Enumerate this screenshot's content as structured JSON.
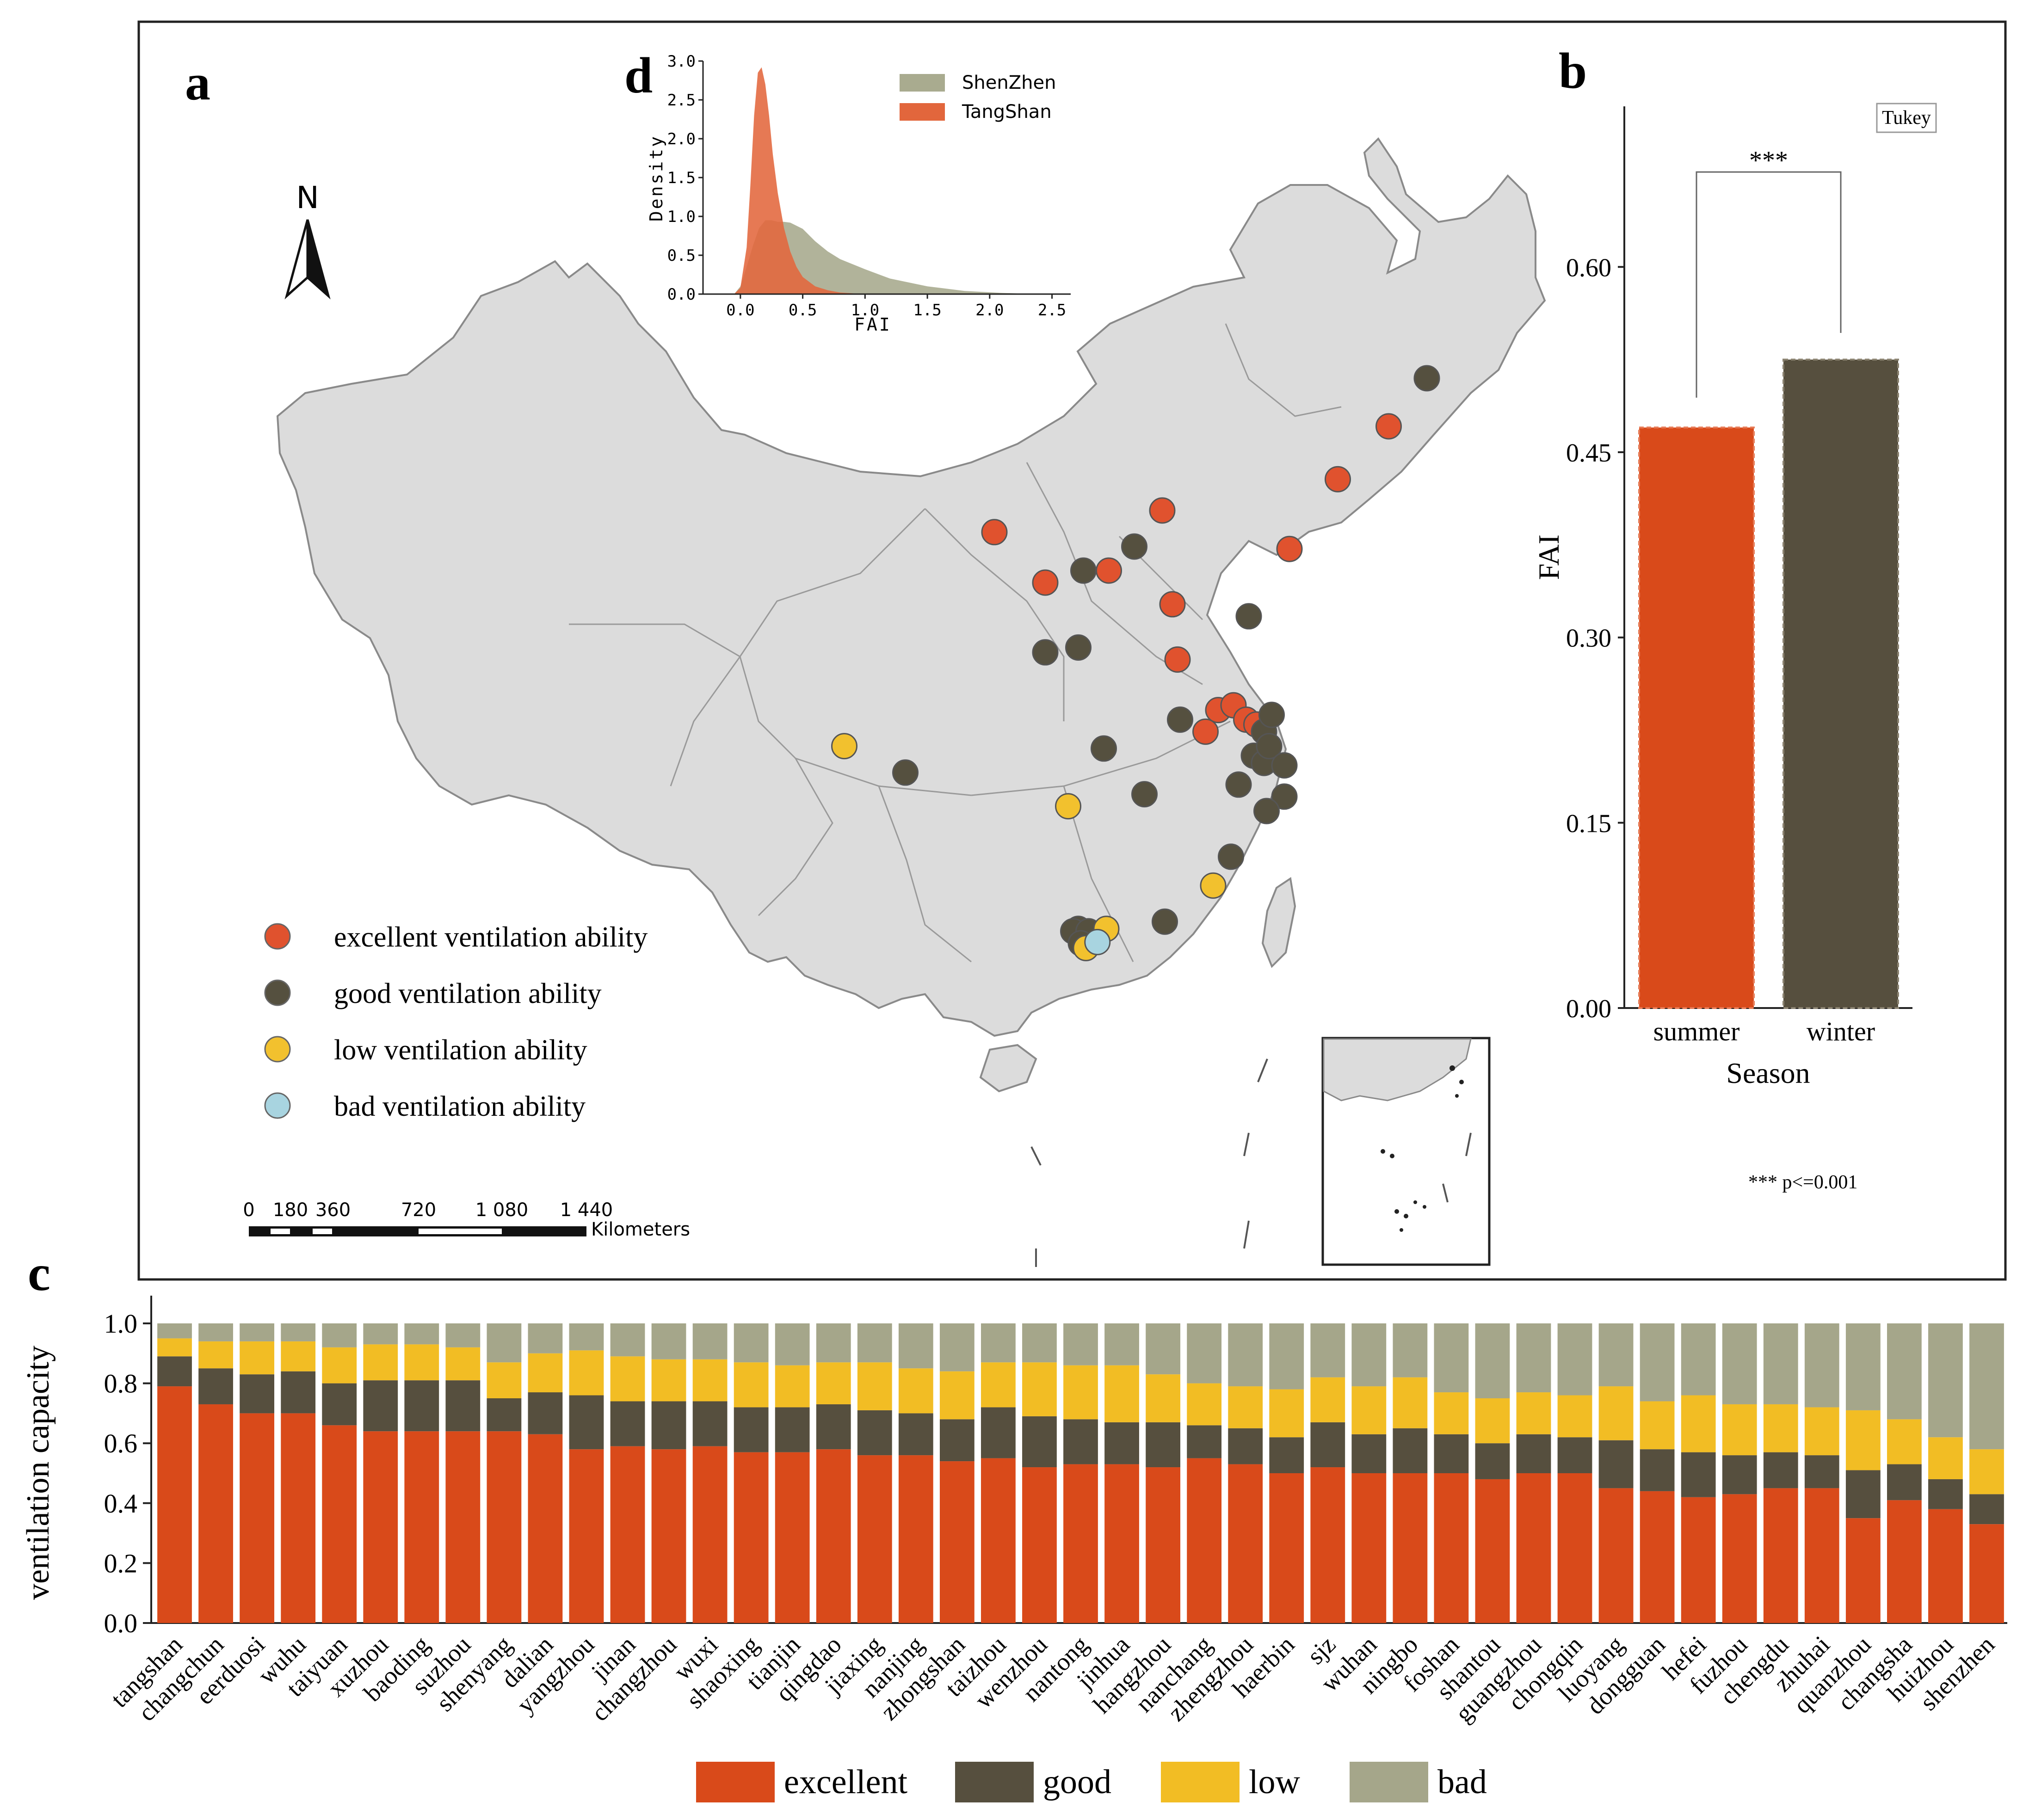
{
  "panels": {
    "a": "a",
    "b": "b",
    "c": "c",
    "d": "d"
  },
  "map": {
    "north": "N",
    "legend": [
      {
        "label": "excellent ventilation ability",
        "color": "#e0522e"
      },
      {
        "label": "good ventilation ability",
        "color": "#55503f"
      },
      {
        "label": "low ventilation ability",
        "color": "#f2c12e"
      },
      {
        "label": "bad ventilation ability",
        "color": "#a8d4e0"
      }
    ],
    "scale": {
      "ticks": [
        "0",
        "180",
        "360",
        "720",
        "1 080",
        "1 440"
      ],
      "unit": "Kilometers"
    }
  },
  "colors": {
    "excellent": "#d94a1a",
    "good": "#564f3e",
    "low": "#f2bd24",
    "bad": "#a5a68a",
    "shenzhen": "#a9ab8f",
    "tangshan": "#e2663c"
  },
  "chart_data": [
    {
      "id": "b",
      "type": "bar",
      "categories": [
        "summer",
        "winter"
      ],
      "values": [
        0.47,
        0.525
      ],
      "xlabel": "Season",
      "ylabel": "FAI",
      "ylim": [
        0,
        0.73
      ],
      "yticks": [
        "0.00",
        "0.15",
        "0.30",
        "0.45",
        "0.60"
      ],
      "test_label": "Tukey",
      "significance": "***",
      "footnote": "*** p<=0.001"
    },
    {
      "id": "c",
      "type": "bar",
      "stacked": true,
      "ylabel": "ventilation capacity",
      "ylim": [
        0,
        1.0
      ],
      "yticks": [
        "0.0",
        "0.2",
        "0.4",
        "0.6",
        "0.8",
        "1.0"
      ],
      "categories": [
        "tangshan",
        "changchun",
        "eerduosi",
        "wuhu",
        "taiyuan",
        "xuzhou",
        "baoding",
        "suzhou",
        "shenyang",
        "dalian",
        "yangzhou",
        "jinan",
        "changzhou",
        "wuxi",
        "shaoxing",
        "tianjin",
        "qingdao",
        "jiaxing",
        "nanjing",
        "zhongshan",
        "taizhou",
        "wenzhou",
        "nantong",
        "jinhua",
        "hangzhou",
        "nanchang",
        "zhengzhou",
        "haerbin",
        "sjz",
        "wuhan",
        "ningbo",
        "foshan",
        "shantou",
        "guangzhou",
        "chongqin",
        "luoyang",
        "dongguan",
        "hefei",
        "fuzhou",
        "chengdu",
        "zhuhai",
        "quanzhou",
        "changsha",
        "huizhou",
        "shenzhen"
      ],
      "series": [
        {
          "name": "excellent",
          "values": [
            0.79,
            0.73,
            0.7,
            0.7,
            0.66,
            0.64,
            0.64,
            0.64,
            0.64,
            0.63,
            0.58,
            0.59,
            0.58,
            0.59,
            0.57,
            0.57,
            0.58,
            0.56,
            0.56,
            0.54,
            0.55,
            0.52,
            0.53,
            0.53,
            0.52,
            0.55,
            0.53,
            0.5,
            0.52,
            0.5,
            0.5,
            0.5,
            0.48,
            0.5,
            0.5,
            0.45,
            0.44,
            0.42,
            0.43,
            0.45,
            0.45,
            0.35,
            0.41,
            0.38,
            0.33
          ]
        },
        {
          "name": "good",
          "values": [
            0.1,
            0.12,
            0.13,
            0.14,
            0.14,
            0.17,
            0.17,
            0.17,
            0.11,
            0.14,
            0.18,
            0.15,
            0.16,
            0.15,
            0.15,
            0.15,
            0.15,
            0.15,
            0.14,
            0.14,
            0.17,
            0.17,
            0.15,
            0.14,
            0.15,
            0.11,
            0.12,
            0.12,
            0.15,
            0.13,
            0.15,
            0.13,
            0.12,
            0.13,
            0.12,
            0.16,
            0.14,
            0.15,
            0.13,
            0.12,
            0.11,
            0.16,
            0.12,
            0.1,
            0.1
          ]
        },
        {
          "name": "low",
          "values": [
            0.06,
            0.09,
            0.11,
            0.1,
            0.12,
            0.12,
            0.12,
            0.11,
            0.12,
            0.13,
            0.15,
            0.15,
            0.14,
            0.14,
            0.15,
            0.14,
            0.14,
            0.16,
            0.15,
            0.16,
            0.15,
            0.18,
            0.18,
            0.19,
            0.16,
            0.14,
            0.14,
            0.16,
            0.15,
            0.16,
            0.17,
            0.14,
            0.15,
            0.14,
            0.14,
            0.18,
            0.16,
            0.19,
            0.17,
            0.16,
            0.16,
            0.2,
            0.15,
            0.14,
            0.15
          ]
        },
        {
          "name": "bad",
          "values": [
            0.05,
            0.06,
            0.06,
            0.06,
            0.08,
            0.07,
            0.07,
            0.08,
            0.13,
            0.1,
            0.09,
            0.11,
            0.12,
            0.12,
            0.13,
            0.14,
            0.13,
            0.13,
            0.15,
            0.16,
            0.13,
            0.13,
            0.14,
            0.14,
            0.17,
            0.2,
            0.21,
            0.22,
            0.18,
            0.21,
            0.18,
            0.23,
            0.25,
            0.23,
            0.24,
            0.21,
            0.26,
            0.24,
            0.27,
            0.27,
            0.28,
            0.29,
            0.32,
            0.38,
            0.42
          ]
        }
      ],
      "legend": [
        "excellent",
        "good",
        "low",
        "bad"
      ]
    },
    {
      "id": "d",
      "type": "area",
      "xlabel": "FAI",
      "ylabel": "Density",
      "xlim": [
        -0.3,
        2.65
      ],
      "ylim": [
        0,
        3.0
      ],
      "xticks": [
        "0.0",
        "0.5",
        "1.0",
        "1.5",
        "2.0",
        "2.5"
      ],
      "yticks": [
        "0.0",
        "0.5",
        "1.0",
        "1.5",
        "2.0",
        "2.5",
        "3.0"
      ],
      "series": [
        {
          "name": "ShenZhen",
          "x": [
            -0.05,
            0.0,
            0.05,
            0.1,
            0.15,
            0.2,
            0.25,
            0.3,
            0.35,
            0.4,
            0.5,
            0.6,
            0.7,
            0.8,
            1.0,
            1.2,
            1.5,
            1.8,
            2.1,
            2.4
          ],
          "y": [
            0.0,
            0.1,
            0.35,
            0.62,
            0.85,
            0.95,
            0.95,
            0.93,
            0.93,
            0.92,
            0.84,
            0.68,
            0.55,
            0.45,
            0.32,
            0.2,
            0.1,
            0.04,
            0.015,
            0.0
          ]
        },
        {
          "name": "TangShan",
          "x": [
            -0.05,
            0.0,
            0.05,
            0.08,
            0.11,
            0.14,
            0.17,
            0.2,
            0.23,
            0.26,
            0.3,
            0.35,
            0.4,
            0.45,
            0.5,
            0.6,
            0.7,
            0.8,
            1.0
          ],
          "y": [
            0.0,
            0.08,
            0.6,
            1.4,
            2.3,
            2.85,
            2.92,
            2.7,
            2.3,
            1.8,
            1.3,
            0.85,
            0.55,
            0.35,
            0.22,
            0.1,
            0.05,
            0.02,
            0.0
          ]
        }
      ]
    }
  ],
  "map_points": [
    {
      "lon": 127.0,
      "lat": 46.0,
      "class": "good"
    },
    {
      "lon": 125.5,
      "lat": 44.0,
      "class": "excellent"
    },
    {
      "lon": 123.5,
      "lat": 41.8,
      "class": "excellent"
    },
    {
      "lon": 121.6,
      "lat": 38.9,
      "class": "excellent"
    },
    {
      "lon": 116.6,
      "lat": 40.5,
      "class": "excellent"
    },
    {
      "lon": 115.5,
      "lat": 39.0,
      "class": "good"
    },
    {
      "lon": 114.5,
      "lat": 38.0,
      "class": "excellent"
    },
    {
      "lon": 113.5,
      "lat": 38.0,
      "class": "good"
    },
    {
      "lon": 112.0,
      "lat": 37.5,
      "class": "excellent"
    },
    {
      "lon": 110.0,
      "lat": 39.6,
      "class": "excellent"
    },
    {
      "lon": 117.0,
      "lat": 36.6,
      "class": "excellent"
    },
    {
      "lon": 120.0,
      "lat": 36.1,
      "class": "good"
    },
    {
      "lon": 117.2,
      "lat": 34.3,
      "class": "excellent"
    },
    {
      "lon": 112.0,
      "lat": 34.6,
      "class": "good"
    },
    {
      "lon": 113.3,
      "lat": 34.8,
      "class": "good"
    },
    {
      "lon": 118.8,
      "lat": 32.2,
      "class": "excellent"
    },
    {
      "lon": 119.4,
      "lat": 32.4,
      "class": "excellent"
    },
    {
      "lon": 118.3,
      "lat": 31.3,
      "class": "excellent"
    },
    {
      "lon": 117.3,
      "lat": 31.8,
      "class": "good"
    },
    {
      "lon": 119.9,
      "lat": 31.8,
      "class": "excellent"
    },
    {
      "lon": 120.3,
      "lat": 31.6,
      "class": "excellent"
    },
    {
      "lon": 120.6,
      "lat": 31.3,
      "class": "good"
    },
    {
      "lon": 120.9,
      "lat": 32.0,
      "class": "good"
    },
    {
      "lon": 120.2,
      "lat": 30.3,
      "class": "good"
    },
    {
      "lon": 120.6,
      "lat": 30.0,
      "class": "good"
    },
    {
      "lon": 120.8,
      "lat": 30.7,
      "class": "good"
    },
    {
      "lon": 121.4,
      "lat": 29.9,
      "class": "good"
    },
    {
      "lon": 119.6,
      "lat": 29.1,
      "class": "good"
    },
    {
      "lon": 121.4,
      "lat": 28.6,
      "class": "good"
    },
    {
      "lon": 120.7,
      "lat": 28.0,
      "class": "good"
    },
    {
      "lon": 115.9,
      "lat": 28.7,
      "class": "good"
    },
    {
      "lon": 114.3,
      "lat": 30.6,
      "class": "good"
    },
    {
      "lon": 112.9,
      "lat": 28.2,
      "class": "low"
    },
    {
      "lon": 106.5,
      "lat": 29.6,
      "class": "good"
    },
    {
      "lon": 104.1,
      "lat": 30.7,
      "class": "low"
    },
    {
      "lon": 119.3,
      "lat": 26.1,
      "class": "good"
    },
    {
      "lon": 118.6,
      "lat": 24.9,
      "class": "low"
    },
    {
      "lon": 116.7,
      "lat": 23.4,
      "class": "good"
    },
    {
      "lon": 113.3,
      "lat": 23.1,
      "class": "good"
    },
    {
      "lon": 113.1,
      "lat": 23.0,
      "class": "good"
    },
    {
      "lon": 113.7,
      "lat": 23.0,
      "class": "good"
    },
    {
      "lon": 114.4,
      "lat": 23.1,
      "class": "low"
    },
    {
      "lon": 113.4,
      "lat": 22.5,
      "class": "good"
    },
    {
      "lon": 113.6,
      "lat": 22.3,
      "class": "low"
    },
    {
      "lon": 114.05,
      "lat": 22.55,
      "class": "bad"
    }
  ]
}
